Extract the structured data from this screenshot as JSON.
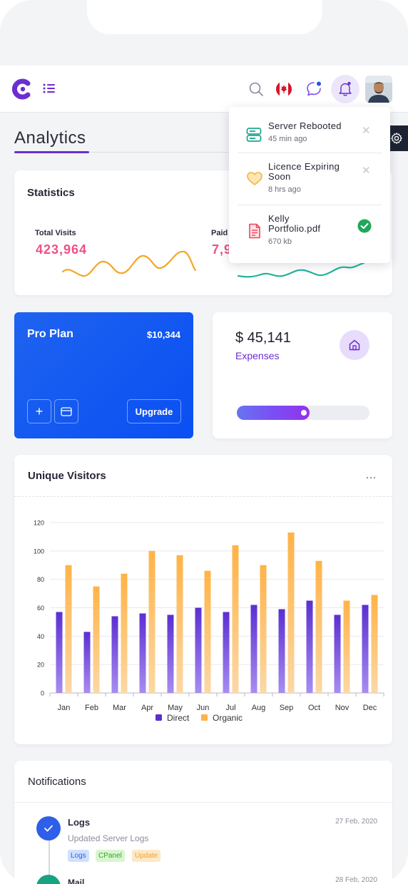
{
  "page": {
    "title": "Analytics"
  },
  "header": {
    "icons": [
      "logo-icon",
      "menu-icon",
      "search-icon",
      "canada-flag-icon",
      "chat-icon",
      "bell-icon",
      "avatar"
    ]
  },
  "statistics": {
    "title": "Statistics",
    "total_visits_label": "Total Visits",
    "total_visits_value": "423,964",
    "paid_label": "Paid",
    "paid_value": "7,9"
  },
  "pro_plan": {
    "title": "Pro Plan",
    "price": "$10,344",
    "upgrade_label": "Upgrade",
    "add_symbol": "+"
  },
  "expenses": {
    "value": "$ 45,141",
    "label": "Expenses",
    "progress": 0.55
  },
  "unique_visitors": {
    "title": "Unique Visitors",
    "menu_symbol": "…"
  },
  "chart_data": {
    "type": "bar",
    "title": "Unique Visitors",
    "categories": [
      "Jan",
      "Feb",
      "Mar",
      "Apr",
      "May",
      "Jun",
      "Jul",
      "Aug",
      "Sep",
      "Oct",
      "Nov",
      "Dec"
    ],
    "series": [
      {
        "name": "Direct",
        "color": "#5b2fd2",
        "values": [
          57,
          43,
          54,
          56,
          55,
          60,
          57,
          62,
          59,
          65,
          55,
          62
        ]
      },
      {
        "name": "Organic",
        "color": "#ffb347",
        "values": [
          90,
          75,
          84,
          100,
          97,
          86,
          104,
          90,
          113,
          93,
          65,
          69
        ]
      }
    ],
    "yticks": [
      0,
      20,
      40,
      60,
      80,
      100,
      120
    ],
    "ylim": [
      0,
      120
    ],
    "legend": "bottom-center",
    "grid": true
  },
  "notifications_panel": {
    "title": "Notifications",
    "items": [
      {
        "title": "Logs",
        "subtitle": "Updated Server Logs",
        "date": "27 Feb, 2020",
        "tags": [
          "Logs",
          "CPanel",
          "Update"
        ]
      },
      {
        "title": "Mail",
        "date": "28 Feb, 2020"
      }
    ]
  },
  "dropdown": {
    "items": [
      {
        "title": "Server Rebooted",
        "time": "45 min ago",
        "icon": "server-icon",
        "color": "#1fa890"
      },
      {
        "title": "Licence Expiring Soon",
        "title_line1": "Licence Expiring",
        "title_line2": "Soon",
        "time": "8 hrs ago",
        "icon": "heart-icon",
        "color": "#f2b43f"
      },
      {
        "title": "Kelly Portfolio.pdf",
        "title_line1": "Kelly",
        "title_line2": "Portfolio.pdf",
        "time": "670 kb",
        "icon": "pdf-file-icon",
        "color": "#e8485f"
      }
    ]
  },
  "colors": {
    "accent": "#6b2fd0",
    "pink": "#ef4f86",
    "blue_card": "#0a4ff2",
    "success": "#1fa85a"
  }
}
